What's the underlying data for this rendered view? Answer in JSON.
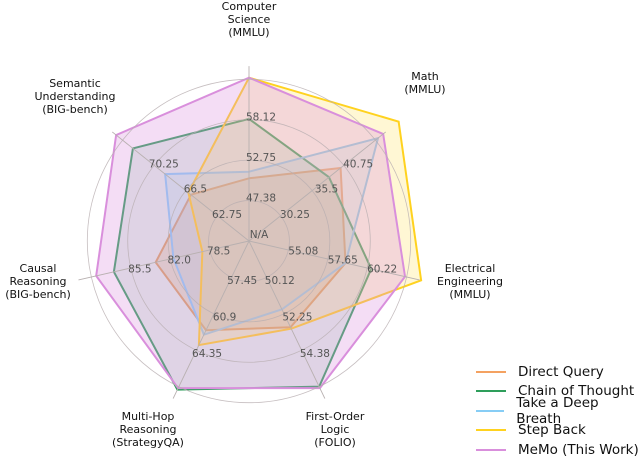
{
  "chart_data": {
    "type": "radar",
    "title": "",
    "center": [
      249,
      241
    ],
    "radius": 165,
    "axes": [
      {
        "label": [
          "Computer",
          "Science",
          "(MMLU)"
        ],
        "ring_labels": [
          "47.38",
          "52.75",
          "58.12"
        ]
      },
      {
        "label": [
          "Math",
          "(MMLU)"
        ],
        "ring_labels": [
          "30.25",
          "35.5",
          "40.75"
        ]
      },
      {
        "label": [
          "Electrical",
          "Engineering",
          "(MMLU)"
        ],
        "ring_labels": [
          "55.08",
          "57.65",
          "60.22"
        ]
      },
      {
        "label": [
          "First-Order",
          "Logic",
          "(FOLIO)"
        ],
        "ring_labels": [
          "50.12",
          "52.25",
          "54.38"
        ]
      },
      {
        "label": [
          "Multi-Hop",
          "Reasoning",
          "(StrategyQA)"
        ],
        "ring_labels": [
          "57.45",
          "60.9",
          "64.35"
        ]
      },
      {
        "label": [
          "Causal",
          "Reasoning",
          "(BIG-bench)"
        ],
        "ring_labels": [
          "78.5",
          "82.0",
          "85.5"
        ]
      },
      {
        "label": [
          "Semantic",
          "Understanding",
          "(BIG-bench)"
        ],
        "ring_labels": [
          "62.75",
          "66.5",
          "70.25"
        ]
      }
    ],
    "center_label": "N/A",
    "series": [
      {
        "name": "Direct Query",
        "color": "#f4a261",
        "fill": "rgba(244,162,97,0.25)",
        "relative_radius": [
          0.38,
          0.71,
          0.6,
          0.58,
          0.6,
          0.58,
          0.45
        ]
      },
      {
        "name": "Chain of Thought",
        "color": "#2e9e5b",
        "fill": "rgba(46,158,91,0.15)",
        "relative_radius": [
          0.74,
          0.62,
          0.76,
          0.98,
          1.0,
          0.84,
          0.9
        ]
      },
      {
        "name": "Take a Deep Breath",
        "color": "#87cdf5",
        "fill": "rgba(135,205,245,0.18)",
        "relative_radius": [
          0.42,
          1.0,
          0.6,
          0.46,
          0.63,
          0.47,
          0.65
        ]
      },
      {
        "name": "Step Back",
        "color": "#ffd21f",
        "fill": "rgba(255,220,60,0.22)",
        "relative_radius": [
          0.99,
          1.16,
          1.07,
          0.59,
          0.7,
          0.29,
          0.47
        ]
      },
      {
        "name": "MeMo (This Work)",
        "color": "#d98fdc",
        "fill": "rgba(220,150,225,0.32)",
        "relative_radius": [
          0.99,
          1.04,
          0.97,
          0.99,
          0.99,
          0.95,
          1.03
        ]
      }
    ],
    "legend_position": "lower right"
  },
  "legend": {
    "items": [
      {
        "label": "Direct Query",
        "color": "#f4a261"
      },
      {
        "label": "Chain of Thought",
        "color": "#2e9e5b"
      },
      {
        "label": "Take a Deep Breath",
        "color": "#87cdf5"
      },
      {
        "label": "Step Back",
        "color": "#ffd21f"
      },
      {
        "label": "MeMo (This Work)",
        "color": "#d98fdc"
      }
    ]
  }
}
